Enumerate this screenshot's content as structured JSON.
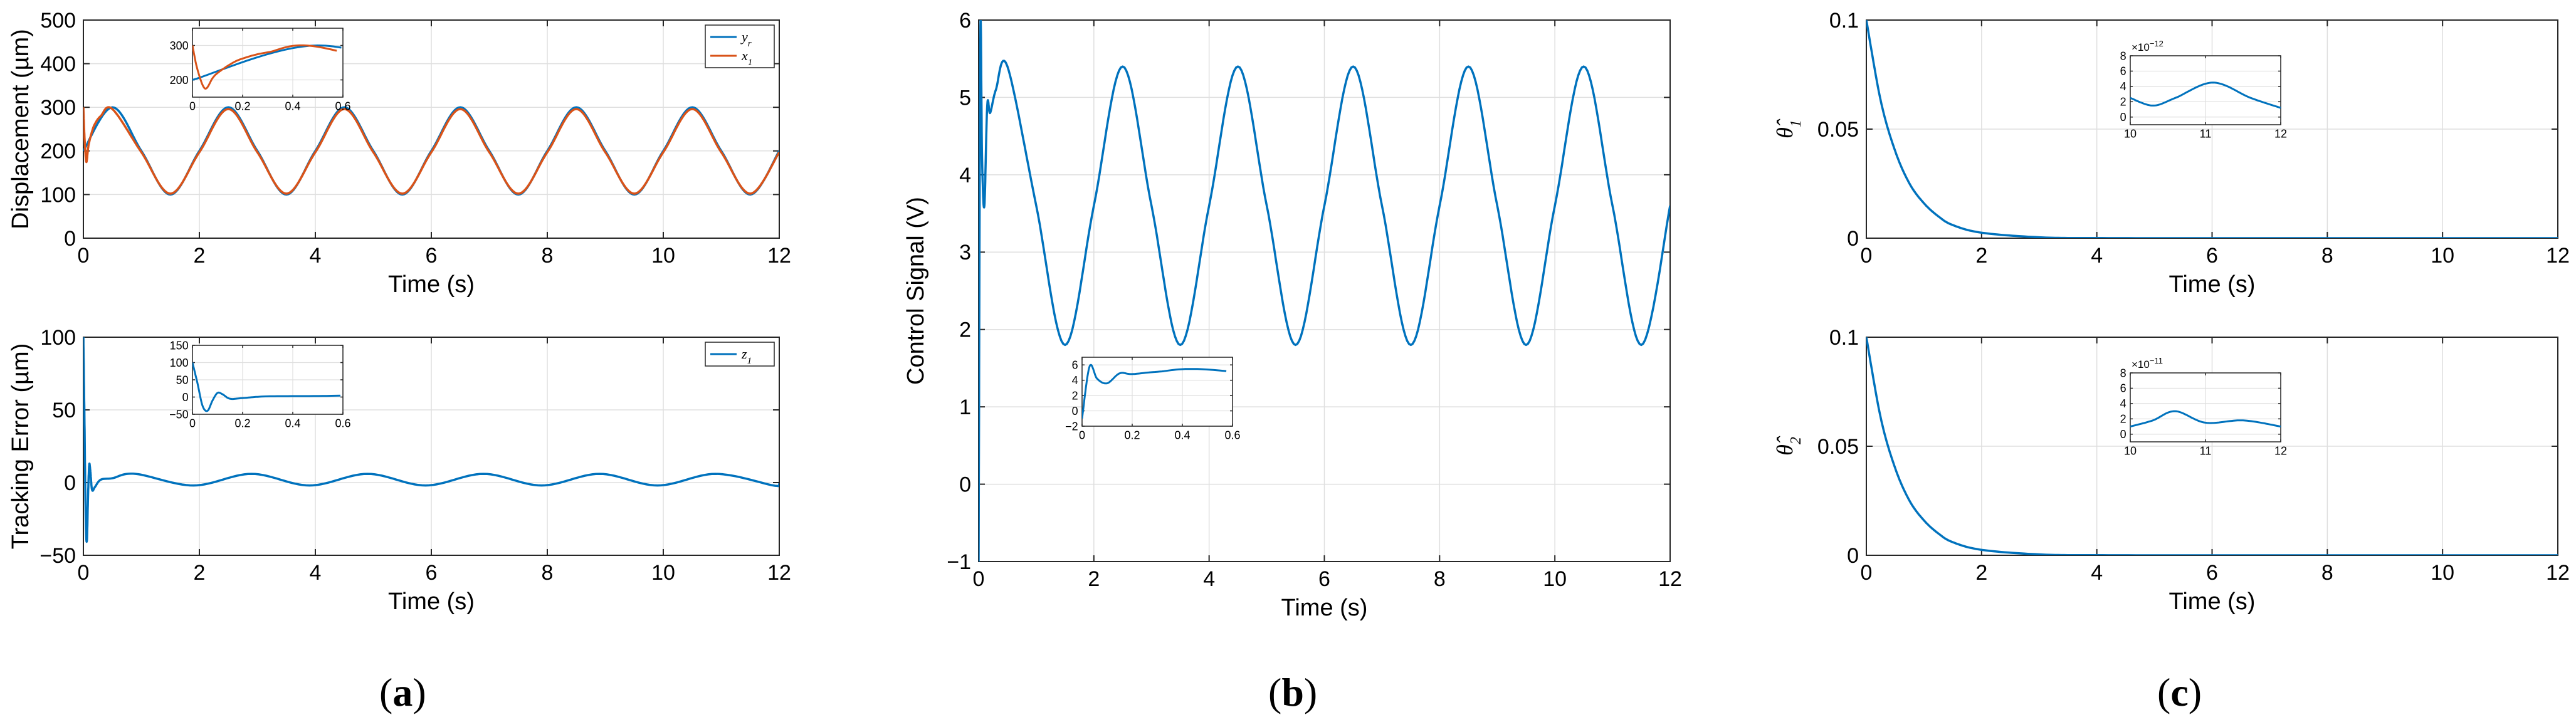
{
  "colors": {
    "blue": "#0072BD",
    "orange": "#D95319",
    "grid": "#DFDFDF",
    "axis": "#262626"
  },
  "panel_labels": {
    "a": "a",
    "b": "b",
    "c": "c"
  },
  "chart_data": [
    {
      "id": "a1",
      "type": "line",
      "xlabel": "Time (s)",
      "ylabel": "Displacement (µm)",
      "xlim": [
        0,
        12
      ],
      "ylim": [
        0,
        500
      ],
      "xticks": [
        0,
        2,
        4,
        6,
        8,
        10,
        12
      ],
      "yticks": [
        0,
        100,
        200,
        300,
        400,
        500
      ],
      "grid": true,
      "legend_position": "top-right",
      "series": [
        {
          "name": "y_r",
          "legend_main": "y",
          "legend_sub": "r",
          "color": "#0072BD",
          "description": "reference sinusoid, amplitude 100, offset 200, period 2 s, peaks at 0.5+2k s",
          "x": [
            0,
            0.5,
            1,
            1.5,
            2,
            2.5,
            3,
            3.5,
            4,
            4.5,
            5,
            5.5,
            6,
            6.5,
            7,
            7.5,
            8,
            8.5,
            9,
            9.5,
            10,
            10.5,
            11,
            11.5,
            12
          ],
          "y": [
            200,
            300,
            200,
            100,
            200,
            300,
            200,
            100,
            200,
            300,
            200,
            100,
            200,
            300,
            200,
            100,
            200,
            300,
            200,
            100,
            200,
            300,
            200,
            100,
            200
          ]
        },
        {
          "name": "x_1",
          "legend_main": "x",
          "legend_sub": "1",
          "color": "#D95319",
          "x": [
            0,
            0.02,
            0.05,
            0.08,
            0.1,
            0.15,
            0.2,
            0.3,
            0.5,
            1,
            1.5,
            2,
            2.5,
            3,
            3.5,
            4,
            4.5,
            5,
            5.5,
            6,
            6.5,
            7,
            7.5,
            8,
            8.5,
            9,
            9.5,
            10,
            10.5,
            11,
            11.5,
            12
          ],
          "y": [
            300,
            230,
            175,
            205,
            220,
            245,
            262,
            280,
            296,
            197,
            102,
            197,
            296,
            197,
            102,
            197,
            296,
            197,
            102,
            197,
            296,
            197,
            102,
            197,
            296,
            197,
            102,
            197,
            296,
            197,
            102,
            197
          ]
        }
      ],
      "inset": {
        "xlim": [
          0,
          0.6
        ],
        "ylim": [
          150,
          350
        ],
        "xticks": [
          0,
          0.2,
          0.4,
          0.6
        ],
        "xtick_labels": [
          "0",
          "0.2",
          "0.4",
          "0.6"
        ],
        "yticks": [
          200,
          300
        ]
      }
    },
    {
      "id": "a2",
      "type": "line",
      "xlabel": "Time (s)",
      "ylabel": "Tracking Error (µm)",
      "xlim": [
        0,
        12
      ],
      "ylim": [
        -50,
        100
      ],
      "xticks": [
        0,
        2,
        4,
        6,
        8,
        10,
        12
      ],
      "yticks": [
        -50,
        0,
        50,
        100
      ],
      "grid": true,
      "legend_position": "top-right",
      "series": [
        {
          "name": "z_1",
          "legend_main": "z",
          "legend_sub": "1",
          "color": "#0072BD",
          "x": [
            0,
            0.02,
            0.04,
            0.06,
            0.08,
            0.1,
            0.12,
            0.15,
            0.2,
            0.3,
            0.5,
            0.9,
            1.9,
            2.9,
            3.9,
            4.9,
            5.9,
            6.9,
            7.9,
            8.9,
            9.9,
            10.9,
            11.9,
            12
          ],
          "y": [
            100,
            40,
            -25,
            -40,
            -10,
            12,
            8,
            -5,
            -3,
            2,
            3,
            6,
            -2,
            6,
            -2,
            6,
            -2,
            6,
            -2,
            6,
            -2,
            6,
            -2,
            -1
          ]
        }
      ],
      "inset": {
        "xlim": [
          0,
          0.6
        ],
        "ylim": [
          -50,
          150
        ],
        "xticks": [
          0,
          0.2,
          0.4,
          0.6
        ],
        "xtick_labels": [
          "0",
          "0.2",
          "0.4",
          "0.6"
        ],
        "yticks": [
          -50,
          0,
          50,
          100,
          150
        ]
      }
    },
    {
      "id": "b",
      "type": "line",
      "xlabel": "Time (s)",
      "ylabel": "Control Signal (V)",
      "xlim": [
        0,
        12
      ],
      "ylim": [
        -1,
        6
      ],
      "xticks": [
        0,
        2,
        4,
        6,
        8,
        10,
        12
      ],
      "yticks": [
        -1,
        0,
        1,
        2,
        3,
        4,
        5,
        6
      ],
      "grid": true,
      "series": [
        {
          "name": "u",
          "color": "#0072BD",
          "x": [
            0,
            0.03,
            0.06,
            0.1,
            0.15,
            0.2,
            0.3,
            0.5,
            1,
            1.5,
            2,
            2.5,
            3,
            3.5,
            4,
            4.5,
            5,
            5.5,
            6,
            6.5,
            7,
            7.5,
            8,
            8.5,
            9,
            9.5,
            10,
            10.5,
            11,
            11.5,
            12
          ],
          "y": [
            -1,
            5.8,
            4.2,
            3.6,
            4.9,
            4.8,
            5.1,
            5.4,
            3.6,
            1.8,
            3.6,
            5.4,
            3.6,
            1.8,
            3.6,
            5.4,
            3.6,
            1.8,
            3.6,
            5.4,
            3.6,
            1.8,
            3.6,
            5.4,
            3.6,
            1.8,
            3.6,
            5.4,
            3.6,
            1.8,
            3.6
          ]
        }
      ],
      "inset": {
        "xlim": [
          0,
          0.6
        ],
        "ylim": [
          -2,
          7
        ],
        "xticks": [
          0,
          0.2,
          0.4,
          0.6
        ],
        "xtick_labels": [
          "0",
          "0.2",
          "0.4",
          "0.6"
        ],
        "yticks": [
          -2,
          0,
          2,
          4,
          6
        ]
      }
    },
    {
      "id": "c1",
      "type": "line",
      "xlabel": "Time (s)",
      "ylabel_main": "θ̂",
      "ylabel_sub": "1",
      "xlim": [
        0,
        12
      ],
      "ylim": [
        0,
        0.1
      ],
      "xticks": [
        0,
        2,
        4,
        6,
        8,
        10,
        12
      ],
      "yticks": [
        0,
        0.05,
        0.1
      ],
      "grid": true,
      "series": [
        {
          "name": "theta_hat_1",
          "color": "#0072BD",
          "x": [
            0,
            0.25,
            0.5,
            0.75,
            1,
            1.25,
            1.5,
            2,
            3,
            4,
            6,
            8,
            10,
            12
          ],
          "y": [
            0.1,
            0.063,
            0.04,
            0.025,
            0.016,
            0.01,
            0.006,
            0.0025,
            0.0004,
            6e-05,
            0,
            0,
            0,
            0
          ]
        }
      ],
      "inset": {
        "xlim": [
          10,
          12
        ],
        "ylim": [
          -1,
          8
        ],
        "xticks": [
          10,
          11,
          12
        ],
        "xtick_labels": [
          "10",
          "11",
          "12"
        ],
        "yticks": [
          0,
          2,
          4,
          6,
          8
        ],
        "exponent_base": "×10",
        "exponent_power": "−12",
        "x": [
          10,
          10.3,
          10.6,
          11.1,
          11.6,
          12
        ],
        "y": [
          2.5,
          1.5,
          2.5,
          4.5,
          2.5,
          1.2
        ]
      }
    },
    {
      "id": "c2",
      "type": "line",
      "xlabel": "Time (s)",
      "ylabel_main": "θ̂",
      "ylabel_sub": "2",
      "xlim": [
        0,
        12
      ],
      "ylim": [
        0,
        0.1
      ],
      "xticks": [
        0,
        2,
        4,
        6,
        8,
        10,
        12
      ],
      "yticks": [
        0,
        0.05,
        0.1
      ],
      "grid": true,
      "series": [
        {
          "name": "theta_hat_2",
          "color": "#0072BD",
          "x": [
            0,
            0.25,
            0.5,
            0.75,
            1,
            1.25,
            1.5,
            2,
            3,
            4,
            6,
            8,
            10,
            12
          ],
          "y": [
            0.1,
            0.063,
            0.04,
            0.025,
            0.016,
            0.01,
            0.006,
            0.0025,
            0.0004,
            6e-05,
            0,
            0,
            0,
            0
          ]
        }
      ],
      "inset": {
        "xlim": [
          10,
          12
        ],
        "ylim": [
          -1,
          8
        ],
        "xticks": [
          10,
          11,
          12
        ],
        "xtick_labels": [
          "10",
          "11",
          "12"
        ],
        "yticks": [
          0,
          2,
          4,
          6,
          8
        ],
        "exponent_base": "×10",
        "exponent_power": "−11",
        "x": [
          10,
          10.3,
          10.6,
          11.0,
          11.5,
          12
        ],
        "y": [
          1,
          1.8,
          3.0,
          1.5,
          1.8,
          1.0
        ]
      }
    }
  ]
}
